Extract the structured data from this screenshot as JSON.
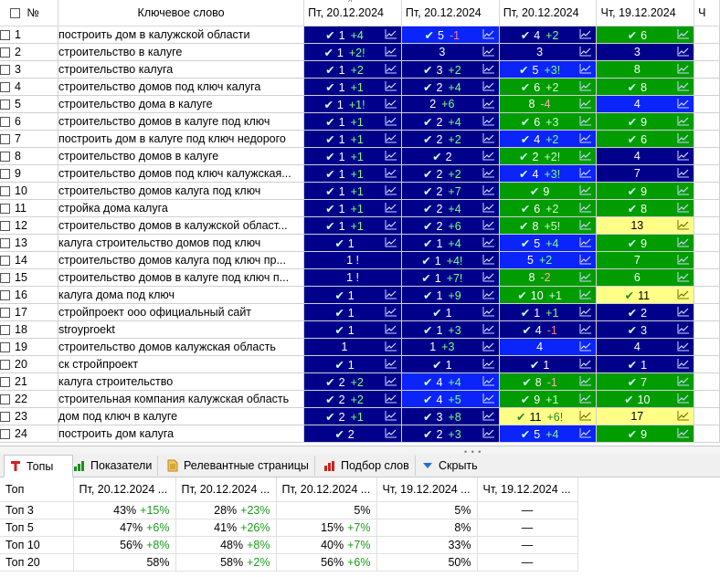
{
  "header": {
    "num": "№",
    "keyword": "Ключевое слово",
    "dates": [
      "Пт, 20.12.2024",
      "Пт, 20.12.2024",
      "Пт, 20.12.2024",
      "Чт, 19.12.2024",
      "Ч"
    ]
  },
  "colors": {
    "navy": "#00008b",
    "blue": "#0b24fa",
    "green": "#009c00",
    "yellow": "#ffff88"
  },
  "rows": [
    {
      "n": "1",
      "kw": "построить дом в калужской области",
      "c": [
        [
          "navy",
          "1",
          "+4",
          1,
          1
        ],
        [
          "blue",
          "5",
          "-1",
          1,
          1
        ],
        [
          "navy",
          "4",
          "+2",
          1,
          1
        ],
        [
          "green",
          "6",
          "",
          1,
          1
        ]
      ]
    },
    {
      "n": "2",
      "kw": "строительство в калуге",
      "c": [
        [
          "navy",
          "1",
          "+2!",
          1,
          1
        ],
        [
          "navy",
          "3",
          "",
          0,
          1
        ],
        [
          "navy",
          "3",
          "",
          0,
          1
        ],
        [
          "navy",
          "3",
          "",
          0,
          1
        ]
      ]
    },
    {
      "n": "3",
      "kw": "строительство калуга",
      "c": [
        [
          "navy",
          "1",
          "+2",
          1,
          1
        ],
        [
          "navy",
          "3",
          "+2",
          1,
          1
        ],
        [
          "blue",
          "5",
          "+3!",
          1,
          1
        ],
        [
          "green",
          "8",
          "",
          0,
          1
        ]
      ]
    },
    {
      "n": "4",
      "kw": "строительство домов под ключ калуга",
      "c": [
        [
          "navy",
          "1",
          "+1",
          1,
          1
        ],
        [
          "navy",
          "2",
          "+4",
          1,
          1
        ],
        [
          "green",
          "6",
          "+2",
          1,
          1
        ],
        [
          "green",
          "8",
          "",
          1,
          1
        ]
      ]
    },
    {
      "n": "5",
      "kw": "строительство дома в калуге",
      "c": [
        [
          "navy",
          "1",
          "+1!",
          1,
          1
        ],
        [
          "navy",
          "2",
          "+6",
          0,
          1
        ],
        [
          "green",
          "8",
          "-4",
          0,
          1
        ],
        [
          "blue",
          "4",
          "",
          0,
          1
        ]
      ]
    },
    {
      "n": "6",
      "kw": "строительство домов в калуге под ключ",
      "c": [
        [
          "navy",
          "1",
          "+1",
          1,
          1
        ],
        [
          "navy",
          "2",
          "+4",
          1,
          1
        ],
        [
          "green",
          "6",
          "+3",
          1,
          1
        ],
        [
          "green",
          "9",
          "",
          1,
          1
        ]
      ]
    },
    {
      "n": "7",
      "kw": "построить дом в калуге под ключ недорого",
      "c": [
        [
          "navy",
          "1",
          "+1",
          1,
          1
        ],
        [
          "navy",
          "2",
          "+2",
          1,
          1
        ],
        [
          "blue",
          "4",
          "+2",
          1,
          1
        ],
        [
          "green",
          "6",
          "",
          1,
          1
        ]
      ]
    },
    {
      "n": "8",
      "kw": "строительство домов в калуге",
      "c": [
        [
          "navy",
          "1",
          "+1",
          1,
          1
        ],
        [
          "navy",
          "2",
          "",
          1,
          1
        ],
        [
          "green",
          "2",
          "+2!",
          1,
          1
        ],
        [
          "navy",
          "4",
          "",
          0,
          1
        ]
      ]
    },
    {
      "n": "9",
      "kw": "строительство домов под ключ калужская...",
      "c": [
        [
          "navy",
          "1",
          "+1",
          1,
          1
        ],
        [
          "navy",
          "2",
          "+2",
          1,
          1
        ],
        [
          "blue",
          "4",
          "+3!",
          1,
          1
        ],
        [
          "navy",
          "7",
          "",
          0,
          1
        ]
      ]
    },
    {
      "n": "10",
      "kw": "строительство домов калуга под ключ",
      "c": [
        [
          "navy",
          "1",
          "+1",
          1,
          1
        ],
        [
          "navy",
          "2",
          "+7",
          1,
          1
        ],
        [
          "green",
          "9",
          "",
          1,
          1
        ],
        [
          "green",
          "9",
          "",
          1,
          1
        ]
      ]
    },
    {
      "n": "11",
      "kw": "стройка дома калуга",
      "c": [
        [
          "navy",
          "1",
          "+1",
          1,
          1
        ],
        [
          "navy",
          "2",
          "+4",
          1,
          1
        ],
        [
          "green",
          "6",
          "+2",
          1,
          1
        ],
        [
          "green",
          "8",
          "",
          1,
          1
        ]
      ]
    },
    {
      "n": "12",
      "kw": "строительство домов в калужской област...",
      "c": [
        [
          "navy",
          "1",
          "+1",
          1,
          1
        ],
        [
          "navy",
          "2",
          "+6",
          1,
          1
        ],
        [
          "green",
          "8",
          "+5!",
          1,
          1
        ],
        [
          "yellow",
          "13",
          "",
          0,
          1
        ]
      ]
    },
    {
      "n": "13",
      "kw": "калуга строительство домов под ключ",
      "c": [
        [
          "navy",
          "1",
          "",
          1,
          1
        ],
        [
          "navy",
          "1",
          "+4",
          1,
          1
        ],
        [
          "blue",
          "5",
          "+4",
          1,
          1
        ],
        [
          "green",
          "9",
          "",
          1,
          1
        ]
      ]
    },
    {
      "n": "14",
      "kw": "строительство домов калуга под ключ пр...",
      "c": [
        [
          "navy",
          "1 !",
          "",
          0,
          0
        ],
        [
          "navy",
          "1",
          "+4!",
          1,
          1
        ],
        [
          "blue",
          "5",
          "+2",
          0,
          1
        ],
        [
          "green",
          "7",
          "",
          0,
          1
        ]
      ]
    },
    {
      "n": "15",
      "kw": "строительство домов в калуге под ключ п...",
      "c": [
        [
          "navy",
          "1 !",
          "",
          0,
          0
        ],
        [
          "navy",
          "1",
          "+7!",
          1,
          1
        ],
        [
          "green",
          "8",
          "-2",
          0,
          1
        ],
        [
          "green",
          "6",
          "",
          0,
          1
        ]
      ]
    },
    {
      "n": "16",
      "kw": "калуга дома под ключ",
      "c": [
        [
          "navy",
          "1",
          "",
          1,
          1
        ],
        [
          "navy",
          "1",
          "+9",
          1,
          1
        ],
        [
          "green",
          "10",
          "+1",
          1,
          1
        ],
        [
          "yellow",
          "11",
          "",
          1,
          1
        ]
      ]
    },
    {
      "n": "17",
      "kw": "стройпроект ооо официальный сайт",
      "c": [
        [
          "navy",
          "1",
          "",
          1,
          1
        ],
        [
          "navy",
          "1",
          "",
          1,
          1
        ],
        [
          "navy",
          "1",
          "+1",
          1,
          1
        ],
        [
          "navy",
          "2",
          "",
          1,
          1
        ]
      ]
    },
    {
      "n": "18",
      "kw": "stroyproekt",
      "c": [
        [
          "navy",
          "1",
          "",
          1,
          1
        ],
        [
          "navy",
          "1",
          "+3",
          1,
          1
        ],
        [
          "navy",
          "4",
          "-1",
          1,
          1
        ],
        [
          "navy",
          "3",
          "",
          1,
          1
        ]
      ]
    },
    {
      "n": "19",
      "kw": "строительство домов калужская область",
      "c": [
        [
          "navy",
          "1",
          "",
          0,
          1
        ],
        [
          "navy",
          "1",
          "+3",
          0,
          1
        ],
        [
          "blue",
          "4",
          "",
          0,
          1
        ],
        [
          "navy",
          "4",
          "",
          0,
          1
        ]
      ]
    },
    {
      "n": "20",
      "kw": "ск стройпроект",
      "c": [
        [
          "navy",
          "1",
          "",
          1,
          1
        ],
        [
          "navy",
          "1",
          "",
          1,
          1
        ],
        [
          "navy",
          "1",
          "",
          1,
          1
        ],
        [
          "navy",
          "1",
          "",
          1,
          1
        ]
      ]
    },
    {
      "n": "21",
      "kw": "калуга строительство",
      "c": [
        [
          "navy",
          "2",
          "+2",
          1,
          1
        ],
        [
          "blue",
          "4",
          "+4",
          1,
          1
        ],
        [
          "green",
          "8",
          "-1",
          1,
          1
        ],
        [
          "green",
          "7",
          "",
          1,
          1
        ]
      ]
    },
    {
      "n": "22",
      "kw": "строительная компания калужская область",
      "c": [
        [
          "navy",
          "2",
          "+2",
          1,
          1
        ],
        [
          "blue",
          "4",
          "+5",
          1,
          1
        ],
        [
          "green",
          "9",
          "+1",
          1,
          1
        ],
        [
          "green",
          "10",
          "",
          1,
          1
        ]
      ]
    },
    {
      "n": "23",
      "kw": "дом под ключ в калуге",
      "c": [
        [
          "navy",
          "2",
          "+1",
          1,
          1
        ],
        [
          "navy",
          "3",
          "+8",
          1,
          1
        ],
        [
          "yellow",
          "11",
          "+6!",
          1,
          1
        ],
        [
          "yellow",
          "17",
          "",
          0,
          1
        ]
      ]
    },
    {
      "n": "24",
      "kw": "построить дом калуга",
      "c": [
        [
          "navy",
          "2",
          "",
          1,
          1
        ],
        [
          "navy",
          "2",
          "+3",
          1,
          1
        ],
        [
          "blue",
          "5",
          "+4",
          1,
          1
        ],
        [
          "green",
          "9",
          "",
          1,
          1
        ]
      ]
    }
  ],
  "tabs": [
    {
      "label": "Топы",
      "icon": "tops-icon"
    },
    {
      "label": "Показатели",
      "icon": "bar-chart-icon"
    },
    {
      "label": "Релевантные страницы",
      "icon": "document-icon"
    },
    {
      "label": "Подбор слов",
      "icon": "word-chart-icon"
    },
    {
      "label": "Скрыть",
      "icon": "chevron-down-icon"
    }
  ],
  "tops": {
    "header": [
      "Топ",
      "Пт, 20.12.2024 ...",
      "Пт, 20.12.2024 ...",
      "Пт, 20.12.2024 ...",
      "Чт, 19.12.2024 ...",
      "Чт, 19.12.2024 ..."
    ],
    "rows": [
      {
        "label": "Топ 3",
        "cells": [
          [
            "43%",
            "+15%"
          ],
          [
            "28%",
            "+23%"
          ],
          [
            "5%",
            ""
          ],
          [
            "5%",
            ""
          ],
          [
            "—",
            ""
          ]
        ]
      },
      {
        "label": "Топ 5",
        "cells": [
          [
            "47%",
            "+6%"
          ],
          [
            "41%",
            "+26%"
          ],
          [
            "15%",
            "+7%"
          ],
          [
            "8%",
            ""
          ],
          [
            "—",
            ""
          ]
        ]
      },
      {
        "label": "Топ 10",
        "cells": [
          [
            "56%",
            "+8%"
          ],
          [
            "48%",
            "+8%"
          ],
          [
            "40%",
            "+7%"
          ],
          [
            "33%",
            ""
          ],
          [
            "—",
            ""
          ]
        ]
      },
      {
        "label": "Топ 20",
        "cells": [
          [
            "58%",
            ""
          ],
          [
            "58%",
            "+2%"
          ],
          [
            "56%",
            "+6%"
          ],
          [
            "50%",
            ""
          ],
          [
            "—",
            ""
          ]
        ]
      }
    ]
  }
}
